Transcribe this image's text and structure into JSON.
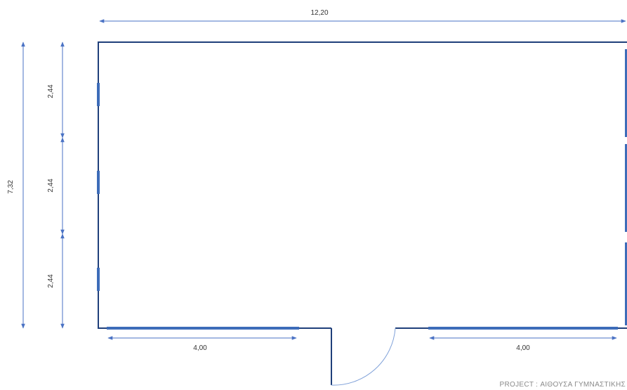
{
  "dimensions": {
    "top_width": "12,20",
    "left_total": "7,32",
    "left_segment_top": "2,44",
    "left_segment_middle": "2,44",
    "left_segment_bottom": "2,44",
    "bottom_left_window": "4,00",
    "bottom_right_window": "4,00"
  },
  "project_label": "PROJECT : ΑΙΘΟΥΣΑ ΓΥΜΝΑΣΤΙΚΗΣ",
  "colors": {
    "wall": "#1f3f7a",
    "window": "#3d6cb9",
    "dimension_line": "#4a72c4",
    "door_swing": "#7d9fd8"
  }
}
